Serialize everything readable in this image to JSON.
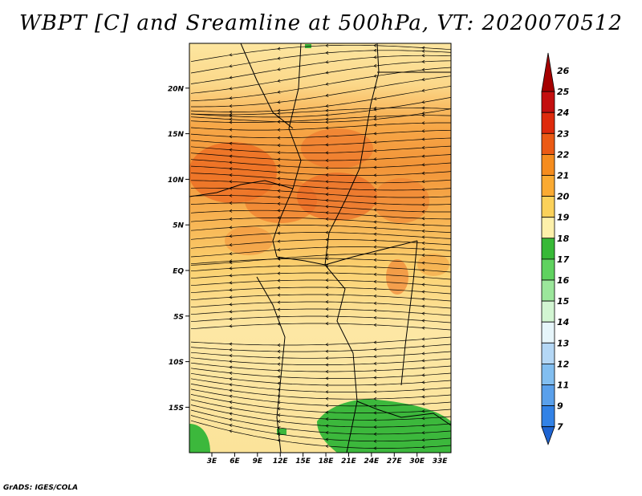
{
  "title": "WBPT [C] and Sreamline at 500hPa, VT: 2020070512",
  "credit": "GrADS: IGES/COLA",
  "map": {
    "lat_labels": [
      "20N",
      "15N",
      "10N",
      "5N",
      "EQ",
      "5S",
      "10S",
      "15S"
    ],
    "lat_values": [
      20,
      15,
      10,
      5,
      0,
      -5,
      -10,
      -15
    ],
    "lon_labels": [
      "3E",
      "6E",
      "9E",
      "12E",
      "15E",
      "18E",
      "21E",
      "24E",
      "27E",
      "30E",
      "33E"
    ],
    "lon_values": [
      3,
      6,
      9,
      12,
      15,
      18,
      21,
      24,
      27,
      30,
      33
    ]
  },
  "colorbar": {
    "labels": [
      "26",
      "25",
      "24",
      "23",
      "22",
      "21",
      "20",
      "19",
      "18",
      "17",
      "16",
      "15",
      "14",
      "13",
      "12",
      "11",
      "9",
      "7"
    ],
    "colors": [
      "#a50000",
      "#c30f0f",
      "#de2a0c",
      "#eb5a14",
      "#f58c1e",
      "#faaa32",
      "#fbd15a",
      "#fdf0aa",
      "#37b937",
      "#5fd25f",
      "#9be69b",
      "#d2f5d2",
      "#e6f5fa",
      "#b4d7f5",
      "#82bef0",
      "#5aa0eb",
      "#3282e6",
      "#1e64d2"
    ]
  }
}
